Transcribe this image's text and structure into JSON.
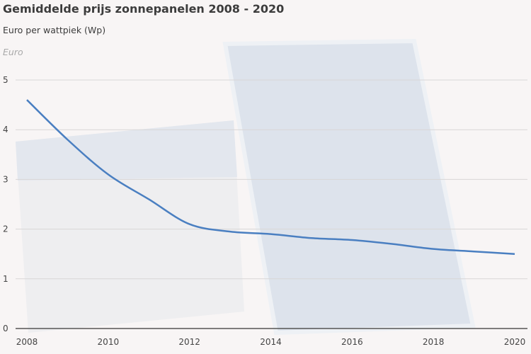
{
  "chart_data": {
    "type": "line",
    "title": "Gemiddelde prijs zonnepanelen 2008 - 2020",
    "subtitle": "Euro per wattpiek (Wp)",
    "ylabel": "Euro",
    "xlabel": "",
    "xlim": [
      2008,
      2020
    ],
    "ylim": [
      0,
      5
    ],
    "x_ticks": [
      "2008",
      "2010",
      "2012",
      "2014",
      "2016",
      "2018",
      "2020"
    ],
    "y_ticks": [
      "0",
      "1",
      "2",
      "3",
      "4",
      "5"
    ],
    "grid": true,
    "x": [
      2008,
      2009,
      2010,
      2011,
      2012,
      2013,
      2014,
      2015,
      2016,
      2017,
      2018,
      2019,
      2020
    ],
    "values": [
      4.6,
      3.8,
      3.1,
      2.6,
      2.1,
      1.95,
      1.9,
      1.82,
      1.78,
      1.7,
      1.6,
      1.55,
      1.5
    ],
    "line_color": "#4a7fc1",
    "background_color": "#f8f5f5"
  }
}
